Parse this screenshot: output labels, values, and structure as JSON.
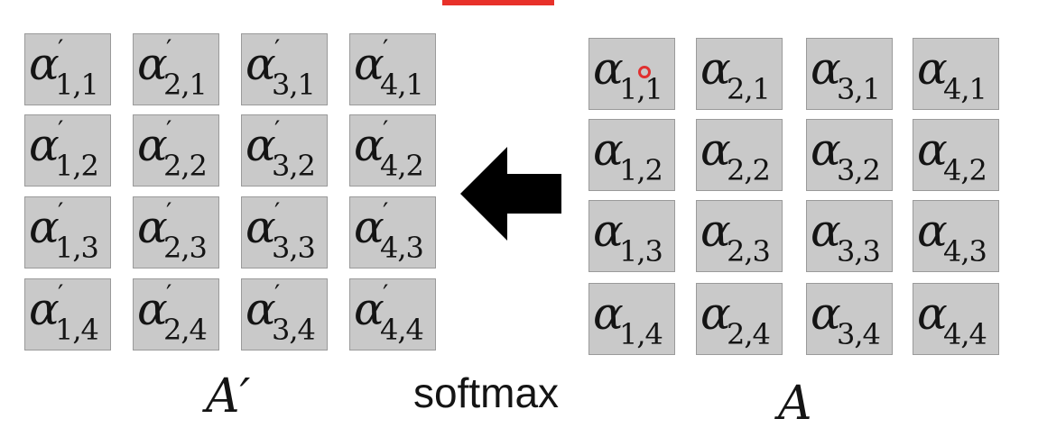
{
  "accent_color": "#e8312a",
  "icons": {
    "arrow": "arrow-left-icon",
    "cursor": "red-dot-icon"
  },
  "output_matrix": {
    "label": "A′",
    "symbol": "α",
    "prime": "′",
    "cells": [
      [
        "1,1",
        "2,1",
        "3,1",
        "4,1"
      ],
      [
        "1,2",
        "2,2",
        "3,2",
        "4,2"
      ],
      [
        "1,3",
        "2,3",
        "3,3",
        "4,3"
      ],
      [
        "1,4",
        "2,4",
        "3,4",
        "4,4"
      ]
    ]
  },
  "input_matrix": {
    "label": "A",
    "symbol": "α",
    "prime": "",
    "cells": [
      [
        "1,1",
        "2,1",
        "3,1",
        "4,1"
      ],
      [
        "1,2",
        "2,2",
        "3,2",
        "4,2"
      ],
      [
        "1,3",
        "2,3",
        "3,3",
        "4,3"
      ],
      [
        "1,4",
        "2,4",
        "3,4",
        "4,4"
      ]
    ]
  },
  "operation": {
    "label": "softmax"
  }
}
